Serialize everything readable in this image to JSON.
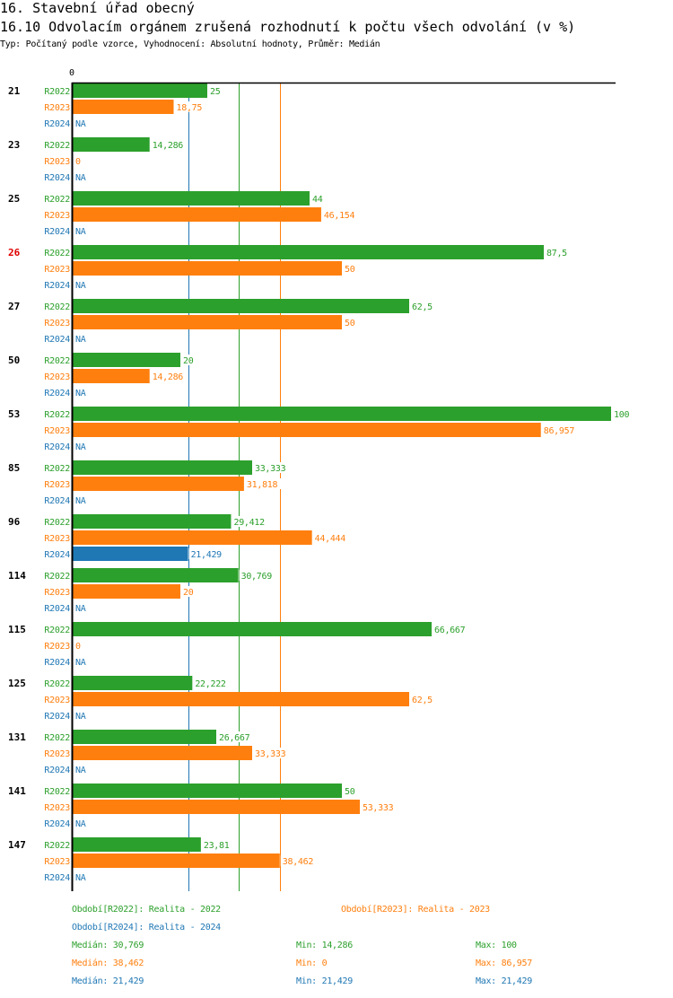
{
  "header": {
    "title": "16. Stavební úřad obecný",
    "subtitle": "16.10 Odvolacím orgánem zrušená rozhodnutí k počtu všech odvolání (v %)",
    "meta": "Typ: Počítaný podle vzorce, Vyhodnocení: Absolutní hodnoty, Průměr: Medián"
  },
  "colors": {
    "R2022": "#2ca02c",
    "R2023": "#ff7f0e",
    "R2024": "#1f77b4",
    "highlight": "#e00000"
  },
  "chart_data": {
    "type": "bar",
    "orientation": "horizontal",
    "title": "16.10 Odvolacím orgánem zrušená rozhodnutí k počtu všech odvolání (v %)",
    "xlim": [
      0,
      100
    ],
    "x_tick_labels": [
      "0"
    ],
    "categories": [
      "21",
      "23",
      "25",
      "26",
      "27",
      "50",
      "53",
      "85",
      "96",
      "114",
      "115",
      "125",
      "131",
      "141",
      "147"
    ],
    "highlighted_category": "26",
    "series": [
      {
        "name": "R2022",
        "values": [
          25,
          14.286,
          44,
          87.5,
          62.5,
          20,
          100,
          33.333,
          29.412,
          30.769,
          66.667,
          22.222,
          26.667,
          50,
          23.81
        ],
        "labels": [
          "25",
          "14,286",
          "44",
          "87,5",
          "62,5",
          "20",
          "100",
          "33,333",
          "29,412",
          "30,769",
          "66,667",
          "22,222",
          "26,667",
          "50",
          "23,81"
        ]
      },
      {
        "name": "R2023",
        "values": [
          18.75,
          0,
          46.154,
          50,
          50,
          14.286,
          86.957,
          31.818,
          44.444,
          20,
          0,
          62.5,
          33.333,
          53.333,
          38.462
        ],
        "labels": [
          "18,75",
          "0",
          "46,154",
          "50",
          "50",
          "14,286",
          "86,957",
          "31,818",
          "44,444",
          "20",
          "0",
          "62,5",
          "33,333",
          "53,333",
          "38,462"
        ]
      },
      {
        "name": "R2024",
        "values": [
          null,
          null,
          null,
          null,
          null,
          null,
          null,
          null,
          21.429,
          null,
          null,
          null,
          null,
          null,
          null
        ],
        "labels": [
          "NA",
          "NA",
          "NA",
          "NA",
          "NA",
          "NA",
          "NA",
          "NA",
          "21,429",
          "NA",
          "NA",
          "NA",
          "NA",
          "NA",
          "NA"
        ]
      }
    ],
    "median_lines": [
      {
        "series": "R2022",
        "value": 30.769
      },
      {
        "series": "R2023",
        "value": 38.462
      },
      {
        "series": "R2024",
        "value": 21.429
      }
    ],
    "legend": [
      {
        "series": "R2022",
        "text": "Období[R2022]: Realita - 2022"
      },
      {
        "series": "R2023",
        "text": "Období[R2023]: Realita - 2023"
      },
      {
        "series": "R2024",
        "text": "Období[R2024]: Realita - 2024"
      }
    ],
    "stats": [
      {
        "series": "R2022",
        "median": "Medián: 30,769",
        "min": "Min: 14,286",
        "max": "Max: 100"
      },
      {
        "series": "R2023",
        "median": "Medián: 38,462",
        "min": "Min: 0",
        "max": "Max: 86,957"
      },
      {
        "series": "R2024",
        "median": "Medián: 21,429",
        "min": "Min: 21,429",
        "max": "Max: 21,429"
      }
    ]
  }
}
